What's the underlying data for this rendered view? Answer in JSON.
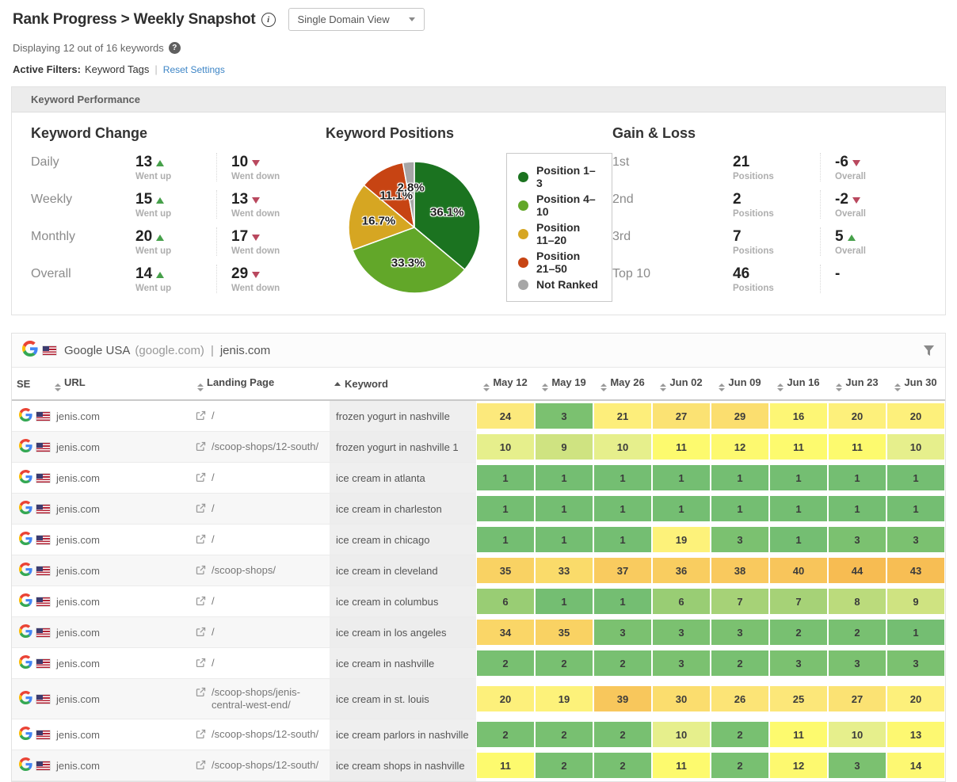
{
  "header": {
    "title": "Rank Progress > Weekly Snapshot",
    "view_selector": "Single Domain View",
    "displaying_text": "Displaying 12 out of 16 keywords",
    "active_filters_label": "Active Filters:",
    "active_filters_value": "Keyword Tags",
    "reset_link": "Reset Settings"
  },
  "performance_panel": {
    "title": "Keyword Performance",
    "keyword_change": {
      "title": "Keyword Change",
      "up_caption": "Went up",
      "down_caption": "Went down",
      "rows": [
        {
          "label": "Daily",
          "up": "13",
          "down": "10"
        },
        {
          "label": "Weekly",
          "up": "15",
          "down": "13"
        },
        {
          "label": "Monthly",
          "up": "20",
          "down": "17"
        },
        {
          "label": "Overall",
          "up": "14",
          "down": "29"
        }
      ]
    },
    "gain_loss": {
      "title": "Gain & Loss",
      "positions_caption": "Positions",
      "overall_caption": "Overall",
      "rows": [
        {
          "label": "1st",
          "positions": "21",
          "overall": "-6",
          "overall_dir": "down"
        },
        {
          "label": "2nd",
          "positions": "2",
          "overall": "-2",
          "overall_dir": "down"
        },
        {
          "label": "3rd",
          "positions": "7",
          "overall": "5",
          "overall_dir": "up"
        },
        {
          "label": "Top 10",
          "positions": "46",
          "overall": "-",
          "overall_dir": "none"
        }
      ]
    }
  },
  "chart_data": {
    "type": "pie",
    "title": "Keyword Positions",
    "labels": [
      "Position 1–3",
      "Position 4–10",
      "Position 11–20",
      "Position 21–50",
      "Not Ranked"
    ],
    "values": [
      36.1,
      33.3,
      16.7,
      11.1,
      2.8
    ],
    "value_suffix": "%",
    "colors": [
      "#1b7320",
      "#62a729",
      "#d6a622",
      "#c74413",
      "#a6a6a6"
    ],
    "legend_position": "right",
    "start_angle": "top",
    "direction": "clockwise"
  },
  "table": {
    "source_title": "Google USA",
    "source_domain": "(google.com)",
    "separator": "|",
    "site": "jenis.com",
    "columns": [
      "SE",
      "URL",
      "Landing Page",
      "Keyword",
      "May 12",
      "May 19",
      "May 26",
      "Jun 02",
      "Jun 09",
      "Jun 16",
      "Jun 23",
      "Jun 30"
    ],
    "sorted_column": "Keyword",
    "sort_direction": "asc",
    "rank_color_stops": [
      [
        1,
        "#74be72"
      ],
      [
        4,
        "#7fc36f"
      ],
      [
        7,
        "#a6d277"
      ],
      [
        9,
        "#cfe381"
      ],
      [
        10,
        "#e6ef8c"
      ],
      [
        11,
        "#fdfa6e"
      ],
      [
        16,
        "#fdf675"
      ],
      [
        20,
        "#fdf07b"
      ],
      [
        24,
        "#fce97c"
      ],
      [
        28,
        "#fbdf70"
      ],
      [
        33,
        "#fadb6a"
      ],
      [
        36,
        "#f9cd60"
      ],
      [
        40,
        "#f8c55b"
      ],
      [
        45,
        "#f7ba50"
      ],
      [
        50,
        "#f6b44a"
      ]
    ],
    "rows": [
      {
        "url": "jenis.com",
        "landing": "/",
        "keyword": "frozen yogurt in nashville",
        "ranks": [
          24,
          3,
          21,
          27,
          29,
          16,
          20,
          20
        ]
      },
      {
        "url": "jenis.com",
        "landing": "/scoop-shops/12-south/",
        "keyword": "frozen yogurt in nashville 1",
        "ranks": [
          10,
          9,
          10,
          11,
          12,
          11,
          11,
          10
        ]
      },
      {
        "url": "jenis.com",
        "landing": "/",
        "keyword": "ice cream in atlanta",
        "ranks": [
          1,
          1,
          1,
          1,
          1,
          1,
          1,
          1
        ]
      },
      {
        "url": "jenis.com",
        "landing": "/",
        "keyword": "ice cream in charleston",
        "ranks": [
          1,
          1,
          1,
          1,
          1,
          1,
          1,
          1
        ]
      },
      {
        "url": "jenis.com",
        "landing": "/",
        "keyword": "ice cream in chicago",
        "ranks": [
          1,
          1,
          1,
          19,
          3,
          1,
          3,
          3
        ]
      },
      {
        "url": "jenis.com",
        "landing": "/scoop-shops/",
        "keyword": "ice cream in cleveland",
        "ranks": [
          35,
          33,
          37,
          36,
          38,
          40,
          44,
          43
        ]
      },
      {
        "url": "jenis.com",
        "landing": "/",
        "keyword": "ice cream in columbus",
        "ranks": [
          6,
          1,
          1,
          6,
          7,
          7,
          8,
          9
        ]
      },
      {
        "url": "jenis.com",
        "landing": "/",
        "keyword": "ice cream in los angeles",
        "ranks": [
          34,
          35,
          3,
          3,
          3,
          2,
          2,
          1
        ]
      },
      {
        "url": "jenis.com",
        "landing": "/",
        "keyword": "ice cream in nashville",
        "ranks": [
          2,
          2,
          2,
          3,
          2,
          3,
          3,
          3
        ]
      },
      {
        "url": "jenis.com",
        "landing": "/scoop-shops/jenis-central-west-end/",
        "keyword": "ice cream in st. louis",
        "ranks": [
          20,
          19,
          39,
          30,
          26,
          25,
          27,
          20
        ]
      },
      {
        "url": "jenis.com",
        "landing": "/scoop-shops/12-south/",
        "keyword": "ice cream parlors in nashville",
        "ranks": [
          2,
          2,
          2,
          10,
          2,
          11,
          10,
          13
        ]
      },
      {
        "url": "jenis.com",
        "landing": "/scoop-shops/12-south/",
        "keyword": "ice cream shops in nashville",
        "ranks": [
          11,
          2,
          2,
          11,
          2,
          12,
          3,
          14
        ]
      }
    ]
  }
}
